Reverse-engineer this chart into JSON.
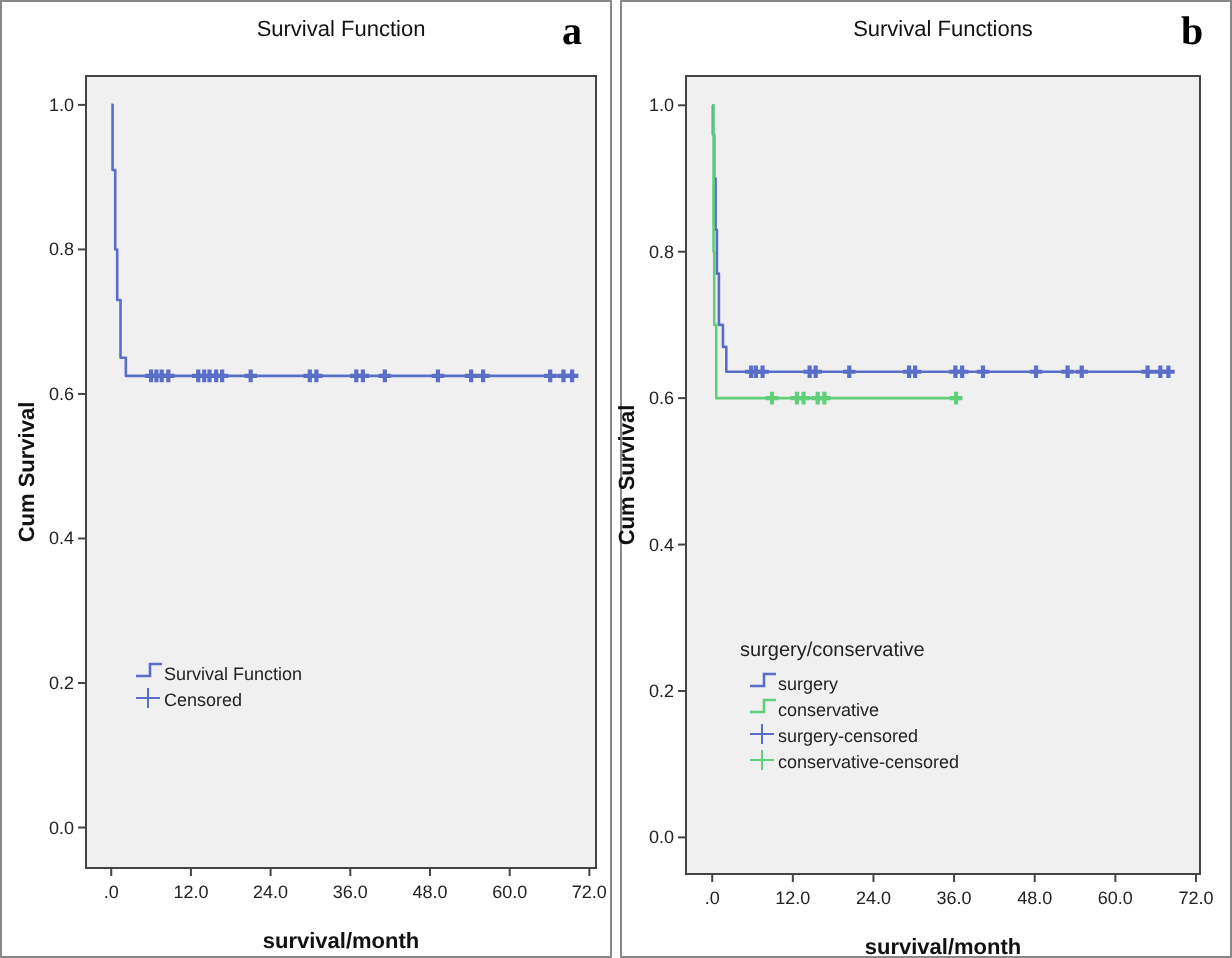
{
  "chart_data": [
    {
      "type": "step",
      "title": "Survival Function",
      "xlabel": "survival/month",
      "ylabel": "Cum Survival",
      "annotations": [
        "a"
      ],
      "xlim": [
        -3.8,
        73
      ],
      "ylim": [
        -0.056,
        1.04
      ],
      "xticks": [
        {
          "value": 0,
          "label": ".0"
        },
        {
          "value": 12,
          "label": "12.0"
        },
        {
          "value": 24,
          "label": "24.0"
        },
        {
          "value": 36,
          "label": "36.0"
        },
        {
          "value": 48,
          "label": "48.0"
        },
        {
          "value": 60,
          "label": "60.0"
        },
        {
          "value": 72,
          "label": "72.0"
        }
      ],
      "yticks": [
        {
          "value": 0,
          "label": "0.0"
        },
        {
          "value": 0.2,
          "label": "0.2"
        },
        {
          "value": 0.4,
          "label": "0.4"
        },
        {
          "value": 0.6,
          "label": "0.6"
        },
        {
          "value": 0.8,
          "label": "0.8"
        },
        {
          "value": 1,
          "label": "1.0"
        }
      ],
      "grid": false,
      "legend": "bottom left",
      "series": [
        {
          "name": "Survival Function",
          "color": "#5a6ec9",
          "x": [
            0,
            0.2,
            0.6,
            0.9,
            1.4,
            2.2,
            69.6
          ],
          "values": [
            1,
            0.91,
            0.8,
            0.73,
            0.65,
            0.625,
            0.625
          ]
        },
        {
          "name": "Censored",
          "type": "scatter",
          "marker": "cross",
          "color": "#5a6ec9",
          "x": [
            6.0,
            6.8,
            7.6,
            8.6,
            13.1,
            14.0,
            14.8,
            15.8,
            16.7,
            21.0,
            29.9,
            30.9,
            36.9,
            37.9,
            41.2,
            49.2,
            54.2,
            56.0,
            66.1,
            68.1,
            69.4
          ],
          "values": [
            0.625,
            0.625,
            0.625,
            0.625,
            0.625,
            0.625,
            0.625,
            0.625,
            0.625,
            0.625,
            0.625,
            0.625,
            0.625,
            0.625,
            0.625,
            0.625,
            0.625,
            0.625,
            0.625,
            0.625,
            0.625
          ]
        }
      ]
    },
    {
      "type": "step",
      "title": "Survival Functions",
      "xlabel": "survival/month",
      "ylabel": "Cum Survival",
      "legend_title": "surgery/conservative",
      "annotations": [
        "b"
      ],
      "xlim": [
        -3.9,
        72.6
      ],
      "ylim": [
        -0.05,
        1.04
      ],
      "xticks": [
        {
          "value": 0,
          "label": ".0"
        },
        {
          "value": 12,
          "label": "12.0"
        },
        {
          "value": 24,
          "label": "24.0"
        },
        {
          "value": 36,
          "label": "36.0"
        },
        {
          "value": 48,
          "label": "48.0"
        },
        {
          "value": 60,
          "label": "60.0"
        },
        {
          "value": 72,
          "label": "72.0"
        }
      ],
      "yticks": [
        {
          "value": 0,
          "label": "0.0"
        },
        {
          "value": 0.2,
          "label": "0.2"
        },
        {
          "value": 0.4,
          "label": "0.4"
        },
        {
          "value": 0.6,
          "label": "0.6"
        },
        {
          "value": 0.8,
          "label": "0.8"
        },
        {
          "value": 1,
          "label": "1.0"
        }
      ],
      "grid": false,
      "legend": "bottom left",
      "series": [
        {
          "name": "surgery",
          "color": "#5a6ec9",
          "x": [
            0,
            0.1,
            0.3,
            0.5,
            0.7,
            1.0,
            1.6,
            2.1,
            68.2
          ],
          "values": [
            1,
            0.96,
            0.9,
            0.83,
            0.77,
            0.7,
            0.67,
            0.636,
            0.636
          ]
        },
        {
          "name": "conservative",
          "color": "#5fcf7a",
          "x": [
            0,
            0.2,
            0.3,
            0.6,
            36.3
          ],
          "values": [
            1,
            0.8,
            0.7,
            0.6,
            0.6
          ]
        },
        {
          "name": "surgery-censored",
          "type": "scatter",
          "marker": "cross",
          "color": "#5a6ec9",
          "x": [
            5.8,
            6.5,
            7.5,
            14.5,
            15.4,
            20.4,
            29.3,
            30.2,
            36.2,
            37.2,
            40.3,
            48.2,
            52.9,
            55.0,
            64.8,
            66.7,
            67.9
          ],
          "values": [
            0.636,
            0.636,
            0.636,
            0.636,
            0.636,
            0.636,
            0.636,
            0.636,
            0.636,
            0.636,
            0.636,
            0.636,
            0.636,
            0.636,
            0.636,
            0.636,
            0.636
          ]
        },
        {
          "name": "conservative-censored",
          "type": "scatter",
          "marker": "cross",
          "color": "#5fcf7a",
          "x": [
            8.9,
            12.6,
            13.6,
            15.7,
            16.7,
            36.3
          ],
          "values": [
            0.6,
            0.6,
            0.6,
            0.6,
            0.6,
            0.6
          ]
        }
      ]
    }
  ]
}
